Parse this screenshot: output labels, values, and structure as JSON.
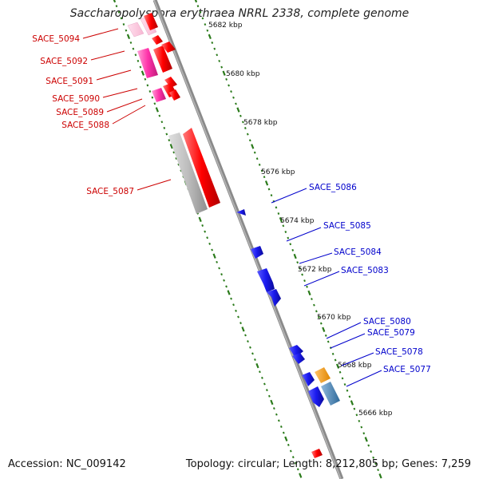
{
  "title": "Saccharopolyspora erythraea NRRL 2338, complete genome",
  "footer": {
    "accession": "Accession: NC_009142",
    "summary": "Topology: circular; Length: 8,212,805 bp; Genes: 7,259"
  },
  "colors": {
    "backbone": "#8a8a8a",
    "ticks": "#2a7a1a",
    "forward_gene": "#ff0000",
    "forward_pink": "#ff33aa",
    "forward_gray": "#bbbbbb",
    "reverse_gene": "#1a1aee",
    "reverse_orange": "#ff9900",
    "reverse_steel": "#4a86b8",
    "forward_label": "#cc0000",
    "reverse_label": "#0000cc"
  },
  "scale_labels": [
    "5682 kbp",
    "5680 kbp",
    "5678 kbp",
    "5676 kbp",
    "5674 kbp",
    "5672 kbp",
    "5670 kbp",
    "5668 kbp",
    "5666 kbp"
  ],
  "forward_labels": [
    "SACE_5094",
    "SACE_5092",
    "SACE_5091",
    "SACE_5090",
    "SACE_5089",
    "SACE_5088",
    "SACE_5087"
  ],
  "reverse_labels": [
    "SACE_5086",
    "SACE_5085",
    "SACE_5084",
    "SACE_5083",
    "SACE_5080",
    "SACE_5079",
    "SACE_5078",
    "SACE_5077"
  ]
}
